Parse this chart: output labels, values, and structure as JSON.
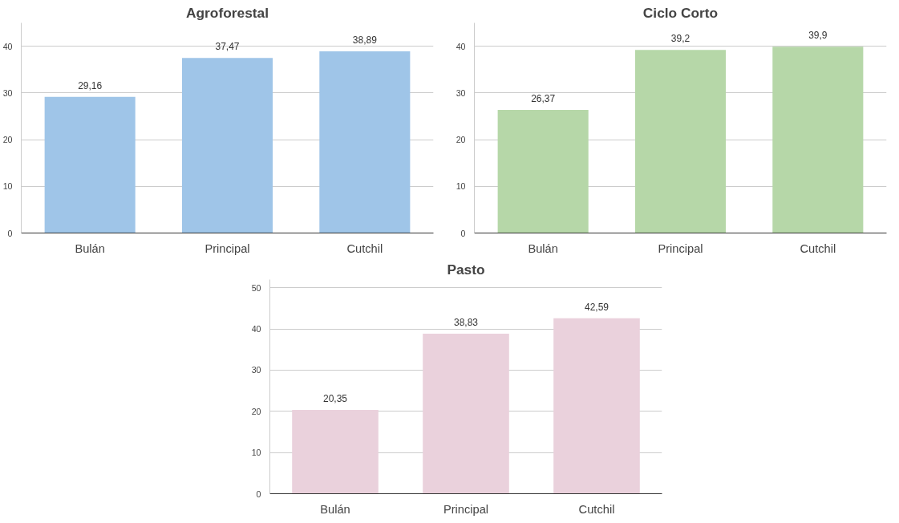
{
  "chart_data": [
    {
      "type": "bar",
      "title": "Agroforestal",
      "categories": [
        "Bulán",
        "Principal",
        "Cutchil"
      ],
      "values": [
        29.16,
        37.47,
        38.89
      ],
      "value_labels": [
        "29,16",
        "37,47",
        "38,89"
      ],
      "color": "#9fc5e8",
      "ylim": [
        0,
        45
      ],
      "yticks": [
        0,
        10,
        20,
        30,
        40
      ],
      "grid": "y"
    },
    {
      "type": "bar",
      "title": "Ciclo Corto",
      "categories": [
        "Bulán",
        "Principal",
        "Cutchil"
      ],
      "values": [
        26.37,
        39.2,
        39.9
      ],
      "value_labels": [
        "26,37",
        "39,2",
        "39,9"
      ],
      "color": "#b6d7a8",
      "ylim": [
        0,
        45
      ],
      "yticks": [
        0,
        10,
        20,
        30,
        40
      ],
      "grid": "y"
    },
    {
      "type": "bar",
      "title": "Pasto",
      "categories": [
        "Bulán",
        "Principal",
        "Cutchil"
      ],
      "values": [
        20.35,
        38.83,
        42.59
      ],
      "value_labels": [
        "20,35",
        "38,83",
        "42,59"
      ],
      "color": "#ead1dc",
      "ylim": [
        0,
        52
      ],
      "yticks": [
        0,
        10,
        20,
        30,
        40,
        50
      ],
      "grid": "y"
    }
  ]
}
